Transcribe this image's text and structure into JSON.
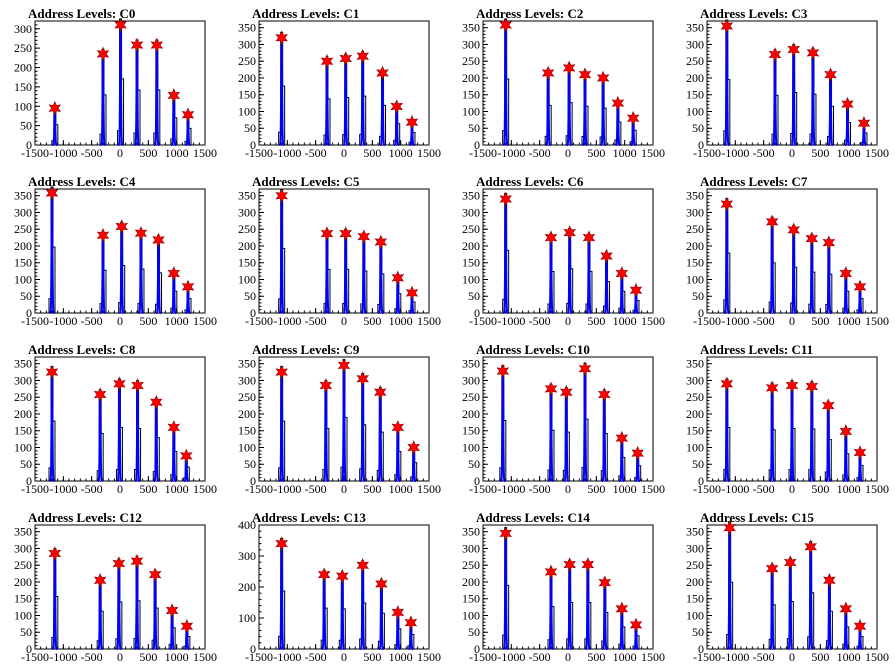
{
  "page_title": "",
  "colors": {
    "fit": "#0000ff",
    "histogram": "#000000",
    "marker": "#ff0000",
    "marker_stroke": "#8b0000",
    "frame": "#000000"
  },
  "chart_data": [
    {
      "type": "line",
      "title": "Address Levels: C0",
      "xlim": [
        -1500,
        1500
      ],
      "ylim": [
        0,
        320
      ],
      "yticks": [
        0,
        50,
        100,
        150,
        200,
        250,
        300
      ],
      "xticks": [
        -1500,
        -1000,
        -500,
        0,
        500,
        1000,
        1500
      ],
      "xtick_labels": [
        "-1500",
        "-1000",
        "-500",
        "0",
        "500",
        "1000",
        "1500"
      ],
      "peaks": [
        {
          "x": -1150,
          "y": 95
        },
        {
          "x": -300,
          "y": 235
        },
        {
          "x": 10,
          "y": 310
        },
        {
          "x": 300,
          "y": 258
        },
        {
          "x": 650,
          "y": 258
        },
        {
          "x": 950,
          "y": 128
        },
        {
          "x": 1200,
          "y": 78
        }
      ]
    },
    {
      "type": "line",
      "title": "Address Levels: C1",
      "xlim": [
        -1500,
        1500
      ],
      "ylim": [
        0,
        370
      ],
      "yticks": [
        0,
        50,
        100,
        150,
        200,
        250,
        300,
        350
      ],
      "xticks": [
        -1500,
        -1000,
        -500,
        0,
        500,
        1000,
        1500
      ],
      "xtick_labels": [
        "-1500",
        "-1000",
        "-500",
        "0",
        "500",
        "1000",
        "1500"
      ],
      "peaks": [
        {
          "x": -1100,
          "y": 320
        },
        {
          "x": -300,
          "y": 250
        },
        {
          "x": 30,
          "y": 258
        },
        {
          "x": 330,
          "y": 265
        },
        {
          "x": 680,
          "y": 215
        },
        {
          "x": 930,
          "y": 115
        },
        {
          "x": 1200,
          "y": 68
        }
      ]
    },
    {
      "type": "line",
      "title": "Address Levels: C2",
      "xlim": [
        -1500,
        1500
      ],
      "ylim": [
        0,
        370
      ],
      "yticks": [
        0,
        50,
        100,
        150,
        200,
        250,
        300,
        350
      ],
      "xticks": [
        -1500,
        -1000,
        -500,
        0,
        500,
        1000,
        1500
      ],
      "xtick_labels": [
        "-1500",
        "-1000",
        "-500",
        "0",
        "500",
        "1000",
        "1500"
      ],
      "peaks": [
        {
          "x": -1100,
          "y": 358
        },
        {
          "x": -350,
          "y": 215
        },
        {
          "x": 20,
          "y": 230
        },
        {
          "x": 300,
          "y": 210
        },
        {
          "x": 620,
          "y": 200
        },
        {
          "x": 880,
          "y": 125
        },
        {
          "x": 1150,
          "y": 80
        }
      ]
    },
    {
      "type": "line",
      "title": "Address Levels: C3",
      "xlim": [
        -1500,
        1500
      ],
      "ylim": [
        0,
        370
      ],
      "yticks": [
        0,
        50,
        100,
        150,
        200,
        250,
        300,
        350
      ],
      "xticks": [
        -1500,
        -1000,
        -500,
        0,
        500,
        1000,
        1500
      ],
      "xtick_labels": [
        "-1500",
        "-1000",
        "-500",
        "0",
        "500",
        "1000",
        "1500"
      ],
      "peaks": [
        {
          "x": -1150,
          "y": 355
        },
        {
          "x": -300,
          "y": 270
        },
        {
          "x": 30,
          "y": 285
        },
        {
          "x": 370,
          "y": 275
        },
        {
          "x": 680,
          "y": 210
        },
        {
          "x": 980,
          "y": 122
        },
        {
          "x": 1270,
          "y": 65
        }
      ]
    },
    {
      "type": "line",
      "title": "Address Levels: C4",
      "xlim": [
        -1500,
        1500
      ],
      "ylim": [
        0,
        370
      ],
      "yticks": [
        0,
        50,
        100,
        150,
        200,
        250,
        300,
        350
      ],
      "xticks": [
        -1500,
        -1000,
        -500,
        0,
        500,
        1000,
        1500
      ],
      "xtick_labels": [
        "-1500",
        "-1000",
        "-500",
        "0",
        "500",
        "1000",
        "1500"
      ],
      "peaks": [
        {
          "x": -1200,
          "y": 358
        },
        {
          "x": -300,
          "y": 232
        },
        {
          "x": 30,
          "y": 258
        },
        {
          "x": 370,
          "y": 238
        },
        {
          "x": 680,
          "y": 218
        },
        {
          "x": 950,
          "y": 118
        },
        {
          "x": 1200,
          "y": 78
        }
      ]
    },
    {
      "type": "line",
      "title": "Address Levels: C5",
      "xlim": [
        -1500,
        1500
      ],
      "ylim": [
        0,
        370
      ],
      "yticks": [
        0,
        50,
        100,
        150,
        200,
        250,
        300,
        350
      ],
      "xticks": [
        -1500,
        -1000,
        -500,
        0,
        500,
        1000,
        1500
      ],
      "xtick_labels": [
        "-1500",
        "-1000",
        "-500",
        "0",
        "500",
        "1000",
        "1500"
      ],
      "peaks": [
        {
          "x": -1100,
          "y": 350
        },
        {
          "x": -300,
          "y": 237
        },
        {
          "x": 30,
          "y": 237
        },
        {
          "x": 350,
          "y": 228
        },
        {
          "x": 650,
          "y": 212
        },
        {
          "x": 950,
          "y": 105
        },
        {
          "x": 1200,
          "y": 60
        }
      ]
    },
    {
      "type": "line",
      "title": "Address Levels: C6",
      "xlim": [
        -1500,
        1500
      ],
      "ylim": [
        0,
        370
      ],
      "yticks": [
        0,
        50,
        100,
        150,
        200,
        250,
        300,
        350
      ],
      "xticks": [
        -1500,
        -1000,
        -500,
        0,
        500,
        1000,
        1500
      ],
      "xtick_labels": [
        "-1500",
        "-1000",
        "-500",
        "0",
        "500",
        "1000",
        "1500"
      ],
      "peaks": [
        {
          "x": -1100,
          "y": 340
        },
        {
          "x": -300,
          "y": 225
        },
        {
          "x": 30,
          "y": 240
        },
        {
          "x": 370,
          "y": 225
        },
        {
          "x": 680,
          "y": 170
        },
        {
          "x": 950,
          "y": 118
        },
        {
          "x": 1200,
          "y": 68
        }
      ]
    },
    {
      "type": "line",
      "title": "Address Levels: C7",
      "xlim": [
        -1500,
        1500
      ],
      "ylim": [
        0,
        370
      ],
      "yticks": [
        0,
        50,
        100,
        150,
        200,
        250,
        300,
        350
      ],
      "xticks": [
        -1500,
        -1000,
        -500,
        0,
        500,
        1000,
        1500
      ],
      "xtick_labels": [
        "-1500",
        "-1000",
        "-500",
        "0",
        "500",
        "1000",
        "1500"
      ],
      "peaks": [
        {
          "x": -1150,
          "y": 325
        },
        {
          "x": -350,
          "y": 272
        },
        {
          "x": 30,
          "y": 248
        },
        {
          "x": 350,
          "y": 222
        },
        {
          "x": 650,
          "y": 210
        },
        {
          "x": 950,
          "y": 118
        },
        {
          "x": 1200,
          "y": 78
        }
      ]
    },
    {
      "type": "line",
      "title": "Address Levels: C8",
      "xlim": [
        -1500,
        1500
      ],
      "ylim": [
        0,
        370
      ],
      "yticks": [
        0,
        50,
        100,
        150,
        200,
        250,
        300,
        350
      ],
      "xticks": [
        -1500,
        -1000,
        -500,
        0,
        500,
        1000,
        1500
      ],
      "xtick_labels": [
        "-1500",
        "-1000",
        "-500",
        "0",
        "500",
        "1000",
        "1500"
      ],
      "peaks": [
        {
          "x": -1200,
          "y": 325
        },
        {
          "x": -350,
          "y": 258
        },
        {
          "x": -10,
          "y": 290
        },
        {
          "x": 310,
          "y": 285
        },
        {
          "x": 640,
          "y": 235
        },
        {
          "x": 950,
          "y": 160
        },
        {
          "x": 1170,
          "y": 75
        }
      ]
    },
    {
      "type": "line",
      "title": "Address Levels: C9",
      "xlim": [
        -1500,
        1500
      ],
      "ylim": [
        0,
        370
      ],
      "yticks": [
        0,
        50,
        100,
        150,
        200,
        250,
        300,
        350
      ],
      "xticks": [
        -1500,
        -1000,
        -500,
        0,
        500,
        1000,
        1500
      ],
      "xtick_labels": [
        "-1500",
        "-1000",
        "-500",
        "0",
        "500",
        "1000",
        "1500"
      ],
      "peaks": [
        {
          "x": -1100,
          "y": 325
        },
        {
          "x": -320,
          "y": 285
        },
        {
          "x": 0,
          "y": 345
        },
        {
          "x": 330,
          "y": 305
        },
        {
          "x": 640,
          "y": 265
        },
        {
          "x": 950,
          "y": 160
        },
        {
          "x": 1230,
          "y": 100
        }
      ]
    },
    {
      "type": "line",
      "title": "Address Levels: C10",
      "xlim": [
        -1500,
        1500
      ],
      "ylim": [
        0,
        370
      ],
      "yticks": [
        0,
        50,
        100,
        150,
        200,
        250,
        300,
        350
      ],
      "xticks": [
        -1500,
        -1000,
        -500,
        0,
        500,
        1000,
        1500
      ],
      "xtick_labels": [
        "-1500",
        "-1000",
        "-500",
        "0",
        "500",
        "1000",
        "1500"
      ],
      "peaks": [
        {
          "x": -1150,
          "y": 328
        },
        {
          "x": -300,
          "y": 275
        },
        {
          "x": -30,
          "y": 265
        },
        {
          "x": 300,
          "y": 335
        },
        {
          "x": 640,
          "y": 258
        },
        {
          "x": 950,
          "y": 128
        },
        {
          "x": 1230,
          "y": 83
        }
      ]
    },
    {
      "type": "line",
      "title": "Address Levels: C11",
      "xlim": [
        -1500,
        1500
      ],
      "ylim": [
        0,
        370
      ],
      "yticks": [
        0,
        50,
        100,
        150,
        200,
        250,
        300,
        350
      ],
      "xticks": [
        -1500,
        -1000,
        -500,
        0,
        500,
        1000,
        1500
      ],
      "xtick_labels": [
        "-1500",
        "-1000",
        "-500",
        "0",
        "500",
        "1000",
        "1500"
      ],
      "peaks": [
        {
          "x": -1150,
          "y": 290
        },
        {
          "x": -350,
          "y": 278
        },
        {
          "x": 0,
          "y": 285
        },
        {
          "x": 350,
          "y": 282
        },
        {
          "x": 640,
          "y": 225
        },
        {
          "x": 950,
          "y": 148
        },
        {
          "x": 1200,
          "y": 85
        }
      ]
    },
    {
      "type": "line",
      "title": "Address Levels: C12",
      "xlim": [
        -1500,
        1500
      ],
      "ylim": [
        0,
        370
      ],
      "yticks": [
        0,
        50,
        100,
        150,
        200,
        250,
        300,
        350
      ],
      "xticks": [
        -1500,
        -1000,
        -500,
        0,
        500,
        1000,
        1500
      ],
      "xtick_labels": [
        "-1500",
        "-1000",
        "-500",
        "0",
        "500",
        "1000",
        "1500"
      ],
      "peaks": [
        {
          "x": -1150,
          "y": 285
        },
        {
          "x": -350,
          "y": 205
        },
        {
          "x": -20,
          "y": 255
        },
        {
          "x": 300,
          "y": 262
        },
        {
          "x": 620,
          "y": 222
        },
        {
          "x": 920,
          "y": 115
        },
        {
          "x": 1180,
          "y": 68
        }
      ]
    },
    {
      "type": "line",
      "title": "Address Levels: C13",
      "xlim": [
        -1500,
        1500
      ],
      "ylim": [
        0,
        400
      ],
      "yticks": [
        0,
        100,
        200,
        300,
        400
      ],
      "xticks": [
        -1500,
        -1000,
        -500,
        0,
        500,
        1000,
        1500
      ],
      "xtick_labels": [
        "-1500",
        "-1000",
        "-500",
        "0",
        "500",
        "1000",
        "1500"
      ],
      "peaks": [
        {
          "x": -1100,
          "y": 340
        },
        {
          "x": -350,
          "y": 240
        },
        {
          "x": -30,
          "y": 235
        },
        {
          "x": 330,
          "y": 270
        },
        {
          "x": 660,
          "y": 210
        },
        {
          "x": 950,
          "y": 118
        },
        {
          "x": 1180,
          "y": 85
        }
      ]
    },
    {
      "type": "line",
      "title": "Address Levels: C14",
      "xlim": [
        -1500,
        1500
      ],
      "ylim": [
        0,
        370
      ],
      "yticks": [
        0,
        50,
        100,
        150,
        200,
        250,
        300,
        350
      ],
      "xticks": [
        -1500,
        -1000,
        -500,
        0,
        500,
        1000,
        1500
      ],
      "xtick_labels": [
        "-1500",
        "-1000",
        "-500",
        "0",
        "500",
        "1000",
        "1500"
      ],
      "peaks": [
        {
          "x": -1100,
          "y": 345
        },
        {
          "x": -300,
          "y": 230
        },
        {
          "x": 30,
          "y": 252
        },
        {
          "x": 350,
          "y": 252
        },
        {
          "x": 650,
          "y": 198
        },
        {
          "x": 950,
          "y": 120
        },
        {
          "x": 1200,
          "y": 72
        }
      ]
    },
    {
      "type": "line",
      "title": "Address Levels: C15",
      "xlim": [
        -1500,
        1500
      ],
      "ylim": [
        0,
        370
      ],
      "yticks": [
        0,
        50,
        100,
        150,
        200,
        250,
        300,
        350
      ],
      "xticks": [
        -1500,
        -1000,
        -500,
        0,
        500,
        1000,
        1500
      ],
      "xtick_labels": [
        "-1500",
        "-1000",
        "-500",
        "0",
        "500",
        "1000",
        "1500"
      ],
      "peaks": [
        {
          "x": -1100,
          "y": 362
        },
        {
          "x": -350,
          "y": 240
        },
        {
          "x": -30,
          "y": 258
        },
        {
          "x": 330,
          "y": 305
        },
        {
          "x": 660,
          "y": 205
        },
        {
          "x": 950,
          "y": 120
        },
        {
          "x": 1200,
          "y": 68
        }
      ]
    }
  ]
}
